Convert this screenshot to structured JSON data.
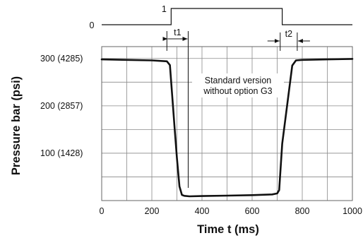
{
  "chart_data": {
    "type": "line",
    "xlabel": "Time t (ms)",
    "ylabel": "Pressure bar (psi)",
    "xlim": [
      0,
      1000
    ],
    "ylim": [
      0,
      325
    ],
    "grid": true,
    "x_ticks": [
      {
        "value": 0,
        "label": "0"
      },
      {
        "value": 200,
        "label": "200"
      },
      {
        "value": 400,
        "label": "400"
      },
      {
        "value": 600,
        "label": "600"
      },
      {
        "value": 800,
        "label": "800"
      },
      {
        "value": 1000,
        "label": "1000"
      }
    ],
    "y_ticks": [
      {
        "value": 100,
        "label": "100 (1428)"
      },
      {
        "value": 200,
        "label": "200 (2857)"
      },
      {
        "value": 300,
        "label": "300 (4285)"
      }
    ],
    "series": [
      {
        "x": [
          0,
          100,
          200,
          260,
          272,
          280,
          290,
          300,
          310,
          320,
          330,
          350,
          400,
          500,
          600,
          680,
          700,
          708,
          720,
          760,
          775,
          800,
          900,
          1000
        ],
        "y": [
          298,
          297,
          296,
          294,
          286,
          230,
          160,
          90,
          30,
          12,
          10,
          9,
          9.5,
          10.5,
          11.5,
          13,
          15,
          22,
          120,
          285,
          296,
          297,
          298,
          299
        ]
      }
    ],
    "signal": {
      "low_label": "0",
      "high_label": "1",
      "rise_x": 277,
      "fall_x": 720
    },
    "annotations": {
      "t1": "t1",
      "t2": "t2",
      "t1_span": [
        260,
        345
      ],
      "t2_span": [
        712,
        780
      ],
      "t1_marker_x": 345,
      "note_lines": [
        "Standard version",
        "without option G3"
      ]
    }
  }
}
